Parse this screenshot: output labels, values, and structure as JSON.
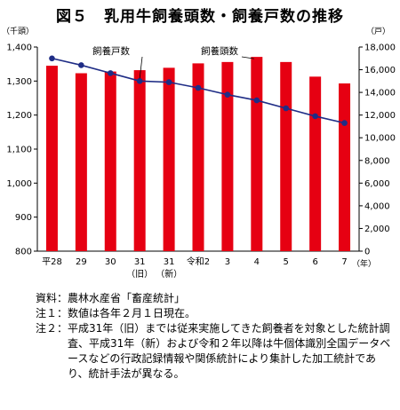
{
  "chart_data": {
    "type": "bar",
    "title": "図５　乳用牛飼養頭数・飼養戸数の推移",
    "y_left_unit": "（千頭）",
    "y_right_unit": "（戸）",
    "x_unit": "（年）",
    "categories": [
      "平28",
      "29",
      "30",
      "31",
      "31",
      "令和2",
      "3",
      "4",
      "5",
      "6",
      "7"
    ],
    "category_sublabels": [
      "",
      "",
      "",
      "（旧）",
      "（新）",
      "",
      "",
      "",
      "",
      "",
      ""
    ],
    "y_left_range": [
      800,
      1400
    ],
    "y_left_ticks": [
      "800",
      "900",
      "1,000",
      "1,100",
      "1,200",
      "1,300",
      "1,400"
    ],
    "y_right_range": [
      0,
      18000
    ],
    "y_right_ticks": [
      "0",
      "2,000",
      "4,000",
      "6,000",
      "8,000",
      "10,000",
      "12,000",
      "14,000",
      "16,000",
      "18,000"
    ],
    "series": [
      {
        "name": "飼養頭数",
        "type": "bar",
        "axis": "left",
        "color": "#e60012",
        "values": [
          1345,
          1323,
          1328,
          1332,
          1339,
          1352,
          1356,
          1371,
          1356,
          1313,
          1293
        ]
      },
      {
        "name": "飼養戸数",
        "type": "line",
        "axis": "right",
        "color": "#1f2d86",
        "values": [
          17000,
          16400,
          15700,
          15000,
          14900,
          14400,
          13800,
          13300,
          12600,
          11900,
          11300
        ]
      }
    ],
    "grid": false
  },
  "notes": [
    {
      "label": "資料：",
      "text": "農林水産省「畜産統計」"
    },
    {
      "label": "注１：",
      "text": "数値は各年２月１日現在。"
    },
    {
      "label": "注２：",
      "text": "平成31年（旧）までは従来実施してきた飼養者を対象とした統計調査、平成31年（新）および令和２年以降は牛個体識別全国データベースなどの行政記録情報や関係統計により集計した加工統計であり、統計手法が異なる。"
    }
  ]
}
